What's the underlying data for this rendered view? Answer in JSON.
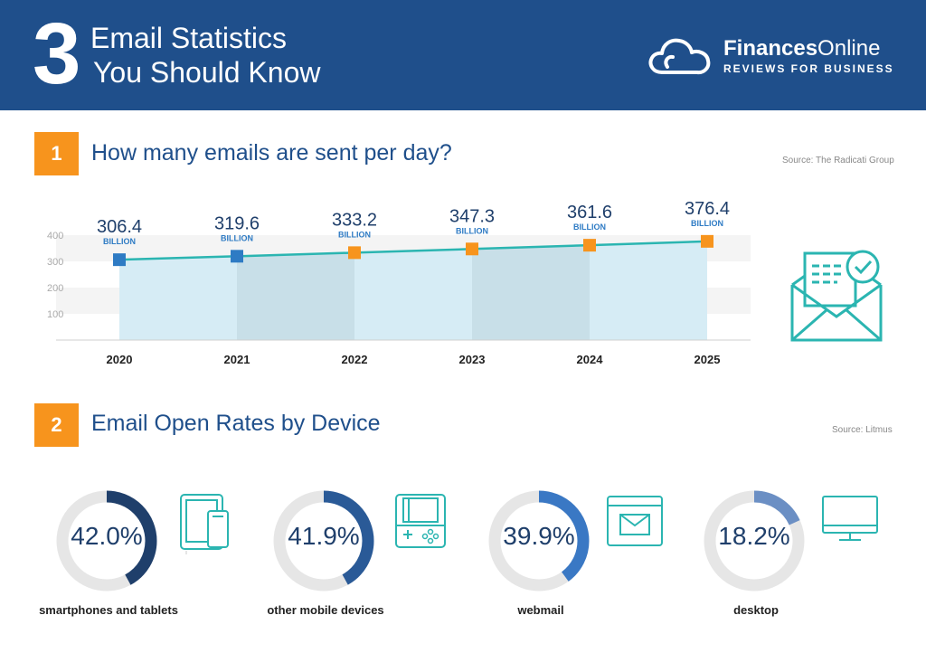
{
  "header": {
    "number": "3",
    "title_line1": "Email Statistics",
    "title_line2": "You Should Know",
    "brand_name_bold": "Finances",
    "brand_name_rest": "Online",
    "brand_tagline": "REVIEWS FOR BUSINESS"
  },
  "section1": {
    "number": "1",
    "title": "How many emails are sent per day?",
    "source": "Source: The Radicati Group",
    "icon": "envelope-check-icon"
  },
  "section2": {
    "number": "2",
    "title": "Email Open Rates by Device",
    "source": "Source: Litmus",
    "devices": [
      {
        "label": "smartphones and tablets",
        "value_text": "42.0%",
        "value": 42.0,
        "icon": "tablet-phone-icon",
        "color": "#1f3f6b"
      },
      {
        "label": "other mobile devices",
        "value_text": "41.9%",
        "value": 41.9,
        "icon": "handheld-console-icon",
        "color": "#2a5a97"
      },
      {
        "label": "webmail",
        "value_text": "39.9%",
        "value": 39.9,
        "icon": "browser-mail-icon",
        "color": "#3a78c4"
      },
      {
        "label": "desktop",
        "value_text": "18.2%",
        "value": 18.2,
        "icon": "monitor-icon",
        "color": "#6b8fc4"
      }
    ]
  },
  "chart_data": [
    {
      "type": "line",
      "title": "How many emails are sent per day?",
      "categories": [
        "2020",
        "2021",
        "2022",
        "2023",
        "2024",
        "2025"
      ],
      "series": [
        {
          "values": [
            306.4,
            319.6,
            333.2,
            347.3,
            361.6,
            376.4
          ]
        }
      ],
      "value_labels": [
        "306.4",
        "319.6",
        "333.2",
        "347.3",
        "361.6",
        "376.4"
      ],
      "unit_label": "BILLION",
      "y_ticks": [
        100,
        200,
        300,
        400
      ],
      "ylim": [
        0,
        400
      ],
      "grid": true,
      "marker_colors": [
        "#2e7bc4",
        "#2e7bc4",
        "#f7941d",
        "#f7941d",
        "#f7941d",
        "#f7941d"
      ],
      "line_color": "#2bb5b1",
      "fill_colors": [
        "#d6ecf5",
        "#c8dfe8"
      ]
    }
  ]
}
